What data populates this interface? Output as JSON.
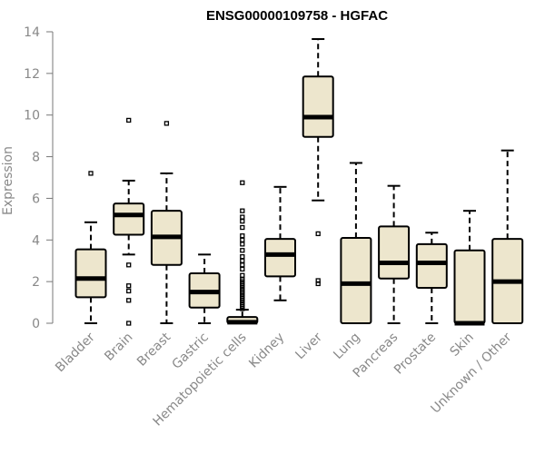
{
  "chart_data": {
    "type": "boxplot",
    "title": "ENSG00000109758 - HGFAC",
    "ylabel": "Expression",
    "ylim": [
      0,
      14
    ],
    "yticks": [
      "0",
      "2",
      "4",
      "6",
      "8",
      "10",
      "12",
      "14"
    ],
    "categories": [
      "Bladder",
      "Brain",
      "Breast",
      "Gastric",
      "Hematopoietic cells",
      "Kidney",
      "Liver",
      "Lung",
      "Pancreas",
      "Prostate",
      "Skin",
      "Unknown / Other"
    ],
    "boxes": [
      {
        "min": 0,
        "q1": 1.25,
        "median": 2.15,
        "q3": 3.55,
        "max": 4.85,
        "outliers": [
          7.2
        ]
      },
      {
        "min": 3.3,
        "q1": 4.25,
        "median": 5.2,
        "q3": 5.75,
        "max": 6.85,
        "outliers": [
          0,
          1.1,
          1.55,
          1.8,
          2.8,
          9.75
        ]
      },
      {
        "min": 0,
        "q1": 2.8,
        "median": 4.15,
        "q3": 5.4,
        "max": 7.2,
        "outliers": [
          9.6
        ]
      },
      {
        "min": 0,
        "q1": 0.75,
        "median": 1.5,
        "q3": 2.4,
        "max": 3.3,
        "outliers": []
      },
      {
        "min": 0,
        "q1": 0,
        "median": 0.05,
        "q3": 0.3,
        "max": 0.65,
        "outliers": [
          0.7,
          0.8,
          0.9,
          1.0,
          1.1,
          1.2,
          1.3,
          1.4,
          1.5,
          1.6,
          1.7,
          1.8,
          1.9,
          2.0,
          2.1,
          2.3,
          2.6,
          2.8,
          3.0,
          3.2,
          3.5,
          3.8,
          4.0,
          4.2,
          4.6,
          4.9,
          5.1,
          5.4,
          6.75
        ]
      },
      {
        "min": 1.1,
        "q1": 2.25,
        "median": 3.3,
        "q3": 4.05,
        "max": 6.55,
        "outliers": []
      },
      {
        "min": 5.9,
        "q1": 8.95,
        "median": 9.9,
        "q3": 11.85,
        "max": 13.65,
        "outliers": [
          1.9,
          2.05,
          4.3
        ]
      },
      {
        "min": 0,
        "q1": 0,
        "median": 1.9,
        "q3": 4.1,
        "max": 7.7,
        "outliers": []
      },
      {
        "min": 0,
        "q1": 2.15,
        "median": 2.9,
        "q3": 4.65,
        "max": 6.6,
        "outliers": []
      },
      {
        "min": 0,
        "q1": 1.7,
        "median": 2.9,
        "q3": 3.8,
        "max": 4.35,
        "outliers": []
      },
      {
        "min": 0,
        "q1": 0,
        "median": 0,
        "q3": 3.5,
        "max": 5.4,
        "outliers": []
      },
      {
        "min": 0,
        "q1": 0,
        "median": 2.0,
        "q3": 4.05,
        "max": 8.3,
        "outliers": []
      }
    ],
    "colors": {
      "box_fill": "#ede6cd",
      "stroke": "#000000",
      "axis_text": "#888888"
    },
    "grid": false,
    "legend": "none"
  }
}
